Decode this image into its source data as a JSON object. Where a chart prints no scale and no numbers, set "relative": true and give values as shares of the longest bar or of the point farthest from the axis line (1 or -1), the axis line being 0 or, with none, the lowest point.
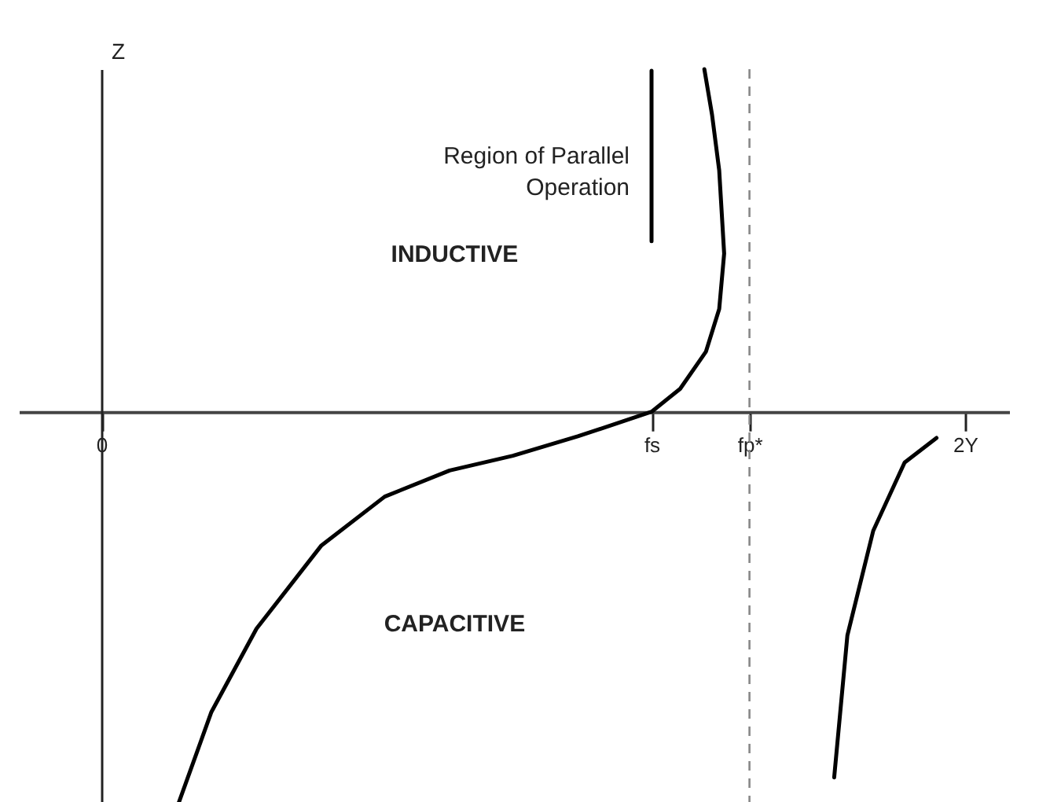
{
  "chart_data": {
    "type": "line",
    "relative": true,
    "ylabel": "Z",
    "xlim": [
      -0.15,
      1.65
    ],
    "xticks": [
      {
        "value": 0,
        "label": "0"
      },
      {
        "value": 1,
        "label": "fs"
      },
      {
        "value": 1.178,
        "label": "fp*"
      },
      {
        "value": 1.57,
        "label": "2Y"
      }
    ],
    "series": [
      {
        "color": "#000000",
        "x": [
          0.137,
          0.2,
          0.282,
          0.4,
          0.515,
          0.633,
          0.748,
          0.866,
          1.0,
          1.052,
          1.099,
          1.123,
          1.132,
          1.123,
          1.11,
          1.096
        ],
        "values": [
          -1,
          -0.757,
          -0.547,
          -0.337,
          -0.214,
          -0.148,
          -0.111,
          -0.062,
          0,
          0.058,
          0.152,
          0.259,
          0.399,
          0.609,
          0.749,
          0.864
        ]
      },
      {
        "color": "#000000",
        "x": [
          1.332,
          1.356,
          1.403,
          1.46,
          1.518
        ],
        "values": [
          -0.922,
          -0.564,
          -0.3,
          -0.128,
          -0.066
        ]
      },
      {
        "color": "#000000",
        "x": [
          1,
          1
        ],
        "values": [
          0.43,
          0.86
        ]
      }
    ],
    "ref_lines": [
      {
        "axis": "x",
        "value": 1.178,
        "color": "#888888",
        "line_style": "dashed"
      }
    ],
    "annotations": [
      {
        "text": "Region of Parallel Operation",
        "x": 1,
        "y": 0.645
      },
      "INDUCTIVE",
      "CAPACITIVE"
    ],
    "grid": false,
    "marker": "none",
    "line_style": "solid"
  }
}
